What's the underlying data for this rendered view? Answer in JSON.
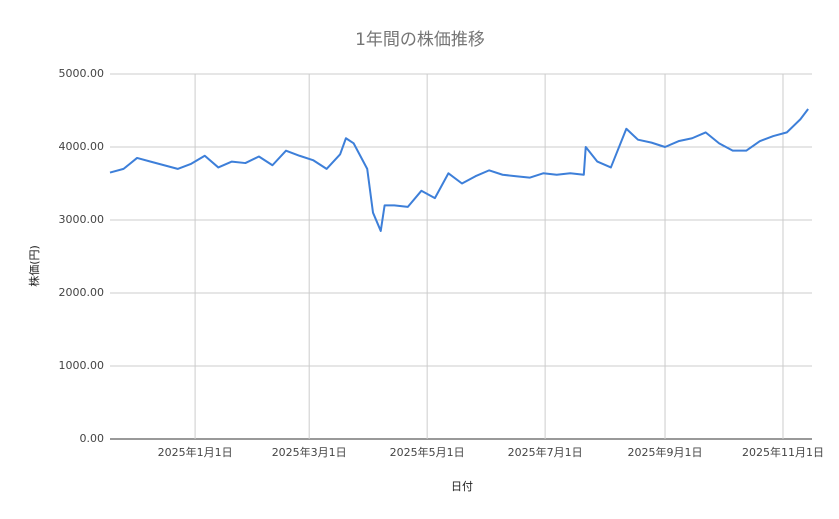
{
  "chart_data": {
    "type": "line",
    "title": "1年間の株価推移",
    "x_label": "日付",
    "y_label": "株価(円)",
    "x": [
      "2024-11-18",
      "2024-11-25",
      "2024-12-02",
      "2024-12-09",
      "2024-12-16",
      "2024-12-23",
      "2024-12-30",
      "2025-01-06",
      "2025-01-13",
      "2025-01-20",
      "2025-01-27",
      "2025-02-03",
      "2025-02-10",
      "2025-02-17",
      "2025-02-24",
      "2025-03-03",
      "2025-03-10",
      "2025-03-17",
      "2025-03-20",
      "2025-03-24",
      "2025-03-31",
      "2025-04-03",
      "2025-04-07",
      "2025-04-09",
      "2025-04-14",
      "2025-04-21",
      "2025-04-28",
      "2025-05-05",
      "2025-05-12",
      "2025-05-19",
      "2025-05-26",
      "2025-06-02",
      "2025-06-09",
      "2025-06-16",
      "2025-06-23",
      "2025-06-30",
      "2025-07-07",
      "2025-07-14",
      "2025-07-21",
      "2025-07-22",
      "2025-07-28",
      "2025-08-04",
      "2025-08-12",
      "2025-08-18",
      "2025-08-25",
      "2025-09-01",
      "2025-09-08",
      "2025-09-15",
      "2025-09-22",
      "2025-09-29",
      "2025-10-06",
      "2025-10-13",
      "2025-10-20",
      "2025-10-27",
      "2025-11-03",
      "2025-11-10",
      "2025-11-14"
    ],
    "series": [
      {
        "name": "株価",
        "color": "#3d7fd9",
        "values": [
          3650,
          3700,
          3850,
          3800,
          3750,
          3700,
          3770,
          3880,
          3720,
          3800,
          3780,
          3870,
          3750,
          3950,
          3880,
          3820,
          3700,
          3900,
          4120,
          4050,
          3700,
          3100,
          2850,
          3200,
          3200,
          3180,
          3400,
          3300,
          3640,
          3500,
          3600,
          3680,
          3620,
          3600,
          3580,
          3640,
          3620,
          3640,
          3620,
          4000,
          3800,
          3720,
          4250,
          4100,
          4060,
          4000,
          4080,
          4120,
          4200,
          4050,
          3950,
          3950,
          4080,
          4150,
          4200,
          4380,
          4520
        ]
      }
    ],
    "xlim": [
      "2024-11-18",
      "2025-11-16"
    ],
    "xticks": [
      {
        "value": "2025-01-01",
        "label": "2025年1月1日"
      },
      {
        "value": "2025-03-01",
        "label": "2025年3月1日"
      },
      {
        "value": "2025-05-01",
        "label": "2025年5月1日"
      },
      {
        "value": "2025-07-01",
        "label": "2025年7月1日"
      },
      {
        "value": "2025-09-01",
        "label": "2025年9月1日"
      },
      {
        "value": "2025-11-01",
        "label": "2025年11月1日"
      }
    ],
    "ylim": [
      0,
      5000
    ],
    "yticks": [
      {
        "value": 0,
        "label": "0.00"
      },
      {
        "value": 1000,
        "label": "1000.00"
      },
      {
        "value": 2000,
        "label": "2000.00"
      },
      {
        "value": 3000,
        "label": "3000.00"
      },
      {
        "value": 4000,
        "label": "4000.00"
      },
      {
        "value": 5000,
        "label": "5000.00"
      }
    ],
    "grid": true
  }
}
